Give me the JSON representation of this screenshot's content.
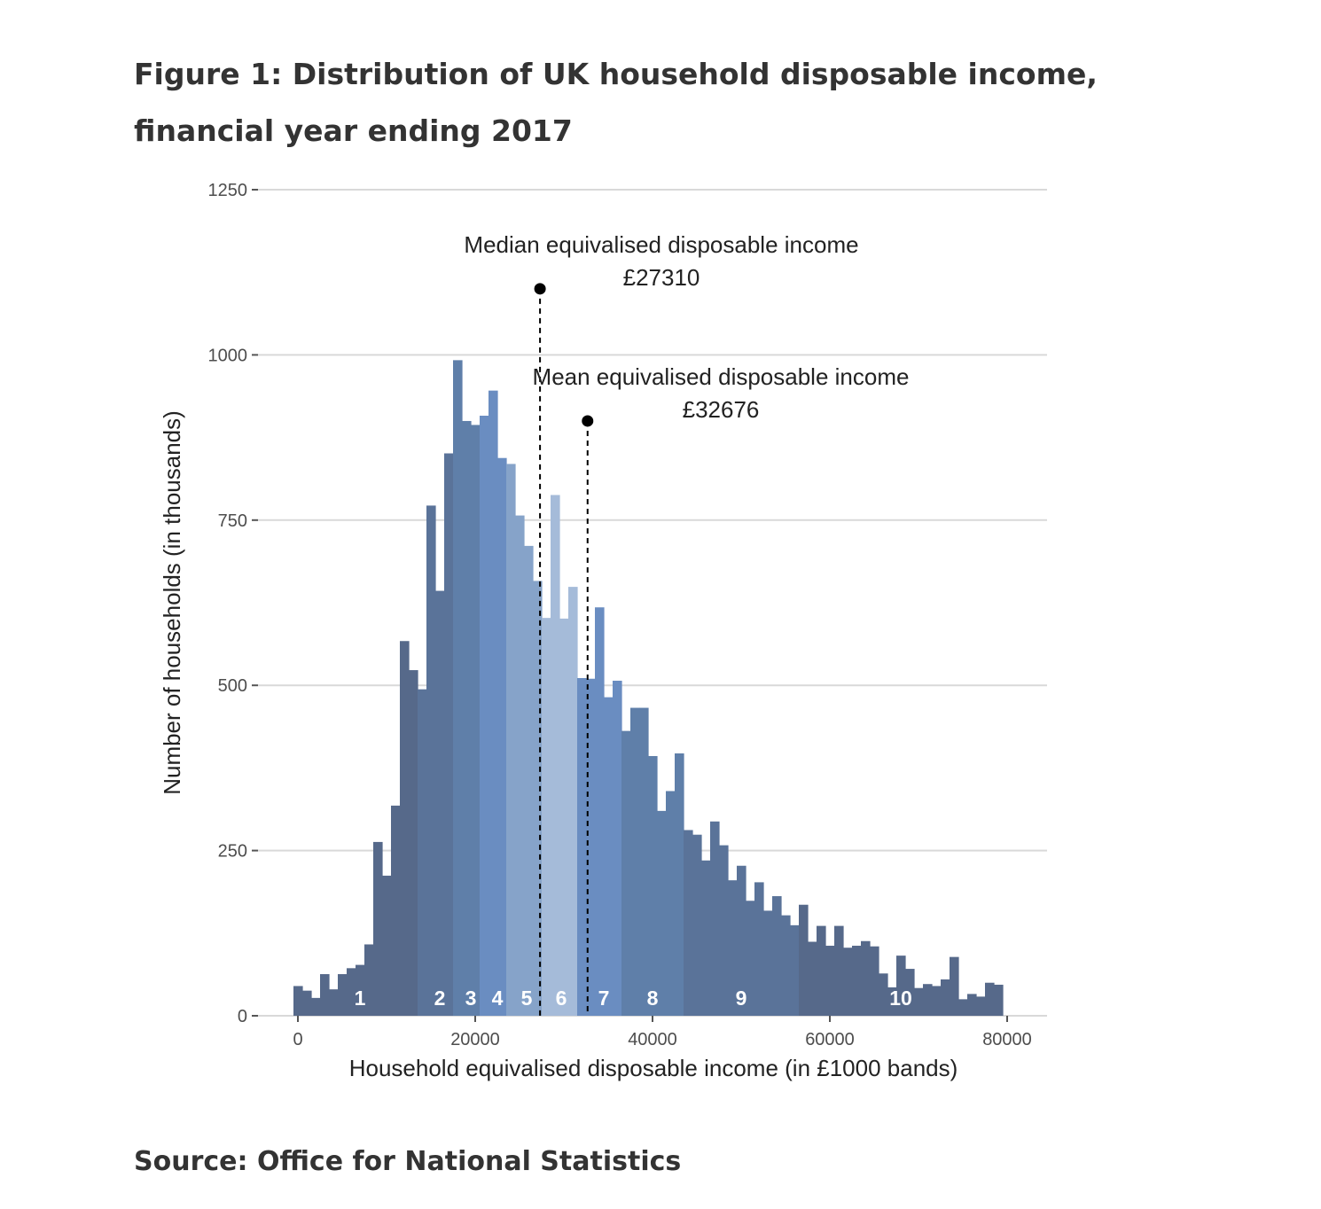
{
  "figure": {
    "title": "Figure 1: Distribution of UK household disposable income, financial year ending 2017",
    "source_label": "Source:",
    "source_text": "Office for National Statistics"
  },
  "colors": {
    "gridline": "#d9d9d9",
    "axis_text": "#4d4d4d",
    "annotation": "#000000",
    "decile_fills": [
      "#56698a",
      "#5a7399",
      "#5f7fa9",
      "#6a8dc1",
      "#86a3c9",
      "#a5bbd9",
      "#6a8dc1",
      "#5f7fa9",
      "#5a7399",
      "#56698a"
    ]
  },
  "chart_data": {
    "type": "bar",
    "subtype": "histogram",
    "title": "Figure 1: Distribution of UK household disposable income, financial year ending 2017",
    "xlabel": "Household equivalised disposable income (in £1000 bands)",
    "ylabel": "Number of households (in thousands)",
    "xlim": [
      -1000,
      84000
    ],
    "ylim": [
      0,
      1250
    ],
    "x_ticks": [
      0,
      20000,
      40000,
      60000,
      80000
    ],
    "x_tick_labels": [
      "0",
      "20000",
      "40000",
      "60000",
      "80000"
    ],
    "y_ticks": [
      0,
      250,
      500,
      750,
      1000,
      1250
    ],
    "y_tick_labels": [
      "0",
      "250",
      "500",
      "750",
      "1000",
      "1250"
    ],
    "grid": "horizontal",
    "bin_width": 1000,
    "bin_start": 0,
    "values": [
      45,
      38,
      27,
      63,
      40,
      63,
      72,
      77,
      108,
      263,
      212,
      318,
      567,
      523,
      494,
      772,
      643,
      851,
      992,
      900,
      894,
      908,
      946,
      844,
      835,
      757,
      711,
      658,
      602,
      788,
      601,
      649,
      511,
      510,
      618,
      482,
      507,
      431,
      466,
      466,
      393,
      310,
      340,
      397,
      281,
      274,
      235,
      294,
      258,
      205,
      227,
      174,
      202,
      159,
      181,
      152,
      137,
      168,
      112,
      136,
      106,
      136,
      103,
      106,
      113,
      105,
      64,
      43,
      91,
      71,
      42,
      48,
      45,
      55,
      89,
      25,
      33,
      29,
      50,
      47
    ],
    "deciles": [
      {
        "label": "1",
        "x_start": 0,
        "x_end": 14000,
        "label_x": 7000
      },
      {
        "label": "2",
        "x_start": 14000,
        "x_end": 18000,
        "label_x": 16000
      },
      {
        "label": "3",
        "x_start": 18000,
        "x_end": 21000,
        "label_x": 19500
      },
      {
        "label": "4",
        "x_start": 21000,
        "x_end": 24000,
        "label_x": 22500
      },
      {
        "label": "5",
        "x_start": 24000,
        "x_end": 28000,
        "label_x": 25800
      },
      {
        "label": "6",
        "x_start": 28000,
        "x_end": 32000,
        "label_x": 29700
      },
      {
        "label": "7",
        "x_start": 32000,
        "x_end": 37000,
        "label_x": 34500
      },
      {
        "label": "8",
        "x_start": 37000,
        "x_end": 44000,
        "label_x": 40000
      },
      {
        "label": "9",
        "x_start": 44000,
        "x_end": 57000,
        "label_x": 50000
      },
      {
        "label": "10",
        "x_start": 57000,
        "x_end": 80000,
        "label_x": 68000
      }
    ],
    "annotations": [
      {
        "name": "median",
        "label": "Median equivalised disposable income",
        "value_label": "£27310",
        "x": 27310,
        "marker_y": 1100,
        "label_x": 41000,
        "label_y": 1155,
        "value_label_x": 41000,
        "value_label_y": 1105
      },
      {
        "name": "mean",
        "label": "Mean equivalised disposable income",
        "value_label": "£32676",
        "x": 32676,
        "marker_y": 900,
        "label_x": 47700,
        "label_y": 955,
        "value_label_x": 47700,
        "value_label_y": 905
      }
    ]
  }
}
